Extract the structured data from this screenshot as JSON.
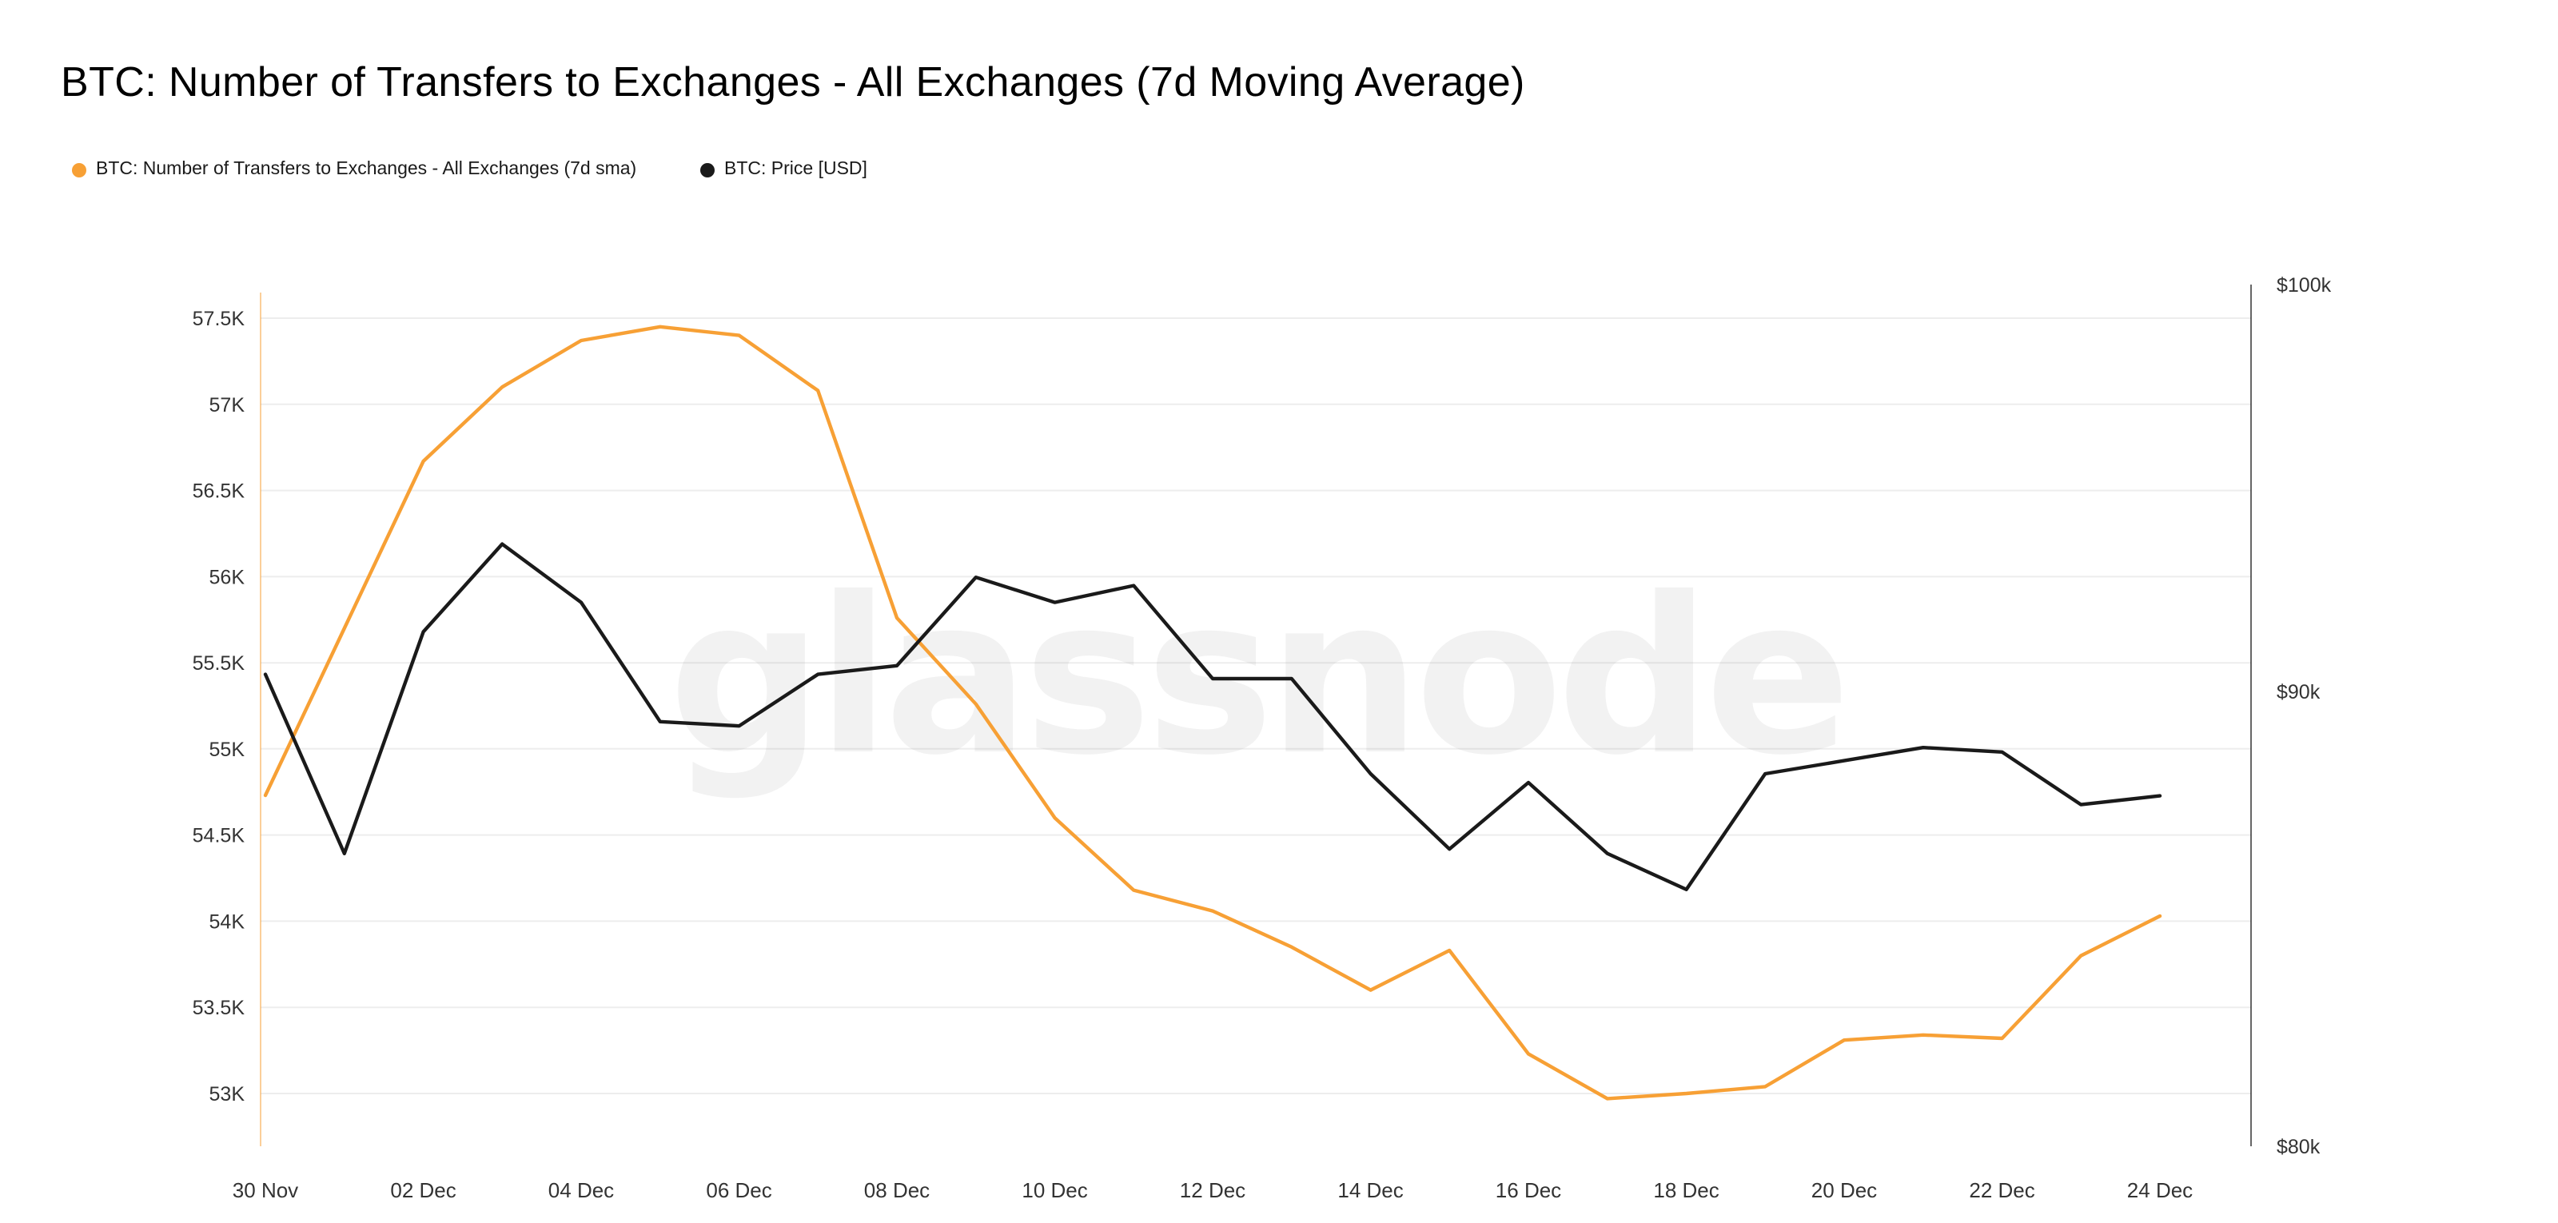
{
  "chart_data": {
    "type": "line",
    "title": "BTC: Number of Transfers to Exchanges - All Exchanges (7d Moving Average)",
    "watermark": "glassnode",
    "legend": [
      {
        "label": "BTC: Number of Transfers to Exchanges - All Exchanges (7d sma)",
        "color": "#f7a035"
      },
      {
        "label": "BTC: Price [USD]",
        "color": "#1a1a1a"
      }
    ],
    "x": [
      "30 Nov",
      "01 Dec",
      "02 Dec",
      "03 Dec",
      "04 Dec",
      "05 Dec",
      "06 Dec",
      "07 Dec",
      "08 Dec",
      "09 Dec",
      "10 Dec",
      "11 Dec",
      "12 Dec",
      "13 Dec",
      "14 Dec",
      "15 Dec",
      "16 Dec",
      "17 Dec",
      "18 Dec",
      "19 Dec",
      "20 Dec",
      "21 Dec",
      "22 Dec",
      "23 Dec",
      "24 Dec"
    ],
    "x_tick_labels": [
      "30 Nov",
      "02 Dec",
      "04 Dec",
      "06 Dec",
      "08 Dec",
      "10 Dec",
      "12 Dec",
      "14 Dec",
      "16 Dec",
      "18 Dec",
      "20 Dec",
      "22 Dec",
      "24 Dec"
    ],
    "series": [
      {
        "name": "transfers-7d-sma",
        "axis": "left",
        "color": "#f7a035",
        "unit": "K transfers",
        "values": [
          54.73,
          55.7,
          56.67,
          57.1,
          57.37,
          57.45,
          57.4,
          57.08,
          55.76,
          55.26,
          54.6,
          54.18,
          54.06,
          53.85,
          53.6,
          53.83,
          53.23,
          52.97,
          53.0,
          53.04,
          53.31,
          53.34,
          53.32,
          53.8,
          54.03
        ]
      },
      {
        "name": "price-usd",
        "axis": "right",
        "color": "#1a1a1a",
        "unit": "$k",
        "values": [
          90.4,
          86.3,
          91.4,
          93.5,
          92.1,
          89.3,
          89.2,
          90.4,
          90.6,
          92.7,
          92.1,
          92.5,
          90.3,
          90.3,
          88.1,
          86.4,
          87.9,
          86.3,
          85.5,
          88.1,
          88.4,
          88.7,
          88.6,
          87.4,
          87.6
        ]
      }
    ],
    "left_axis": {
      "ticks": [
        "57.5K",
        "57K",
        "56.5K",
        "56K",
        "55.5K",
        "55K",
        "54.5K",
        "54K",
        "53.5K",
        "53K"
      ],
      "tick_values": [
        57.5,
        57,
        56.5,
        56,
        55.5,
        55,
        54.5,
        54,
        53.5,
        53
      ],
      "scale": "linear"
    },
    "right_axis": {
      "ticks": [
        "$100k",
        "$90k",
        "$80k"
      ],
      "tick_values": [
        100,
        90,
        80
      ],
      "scale": "log"
    },
    "grid": "horizontal",
    "legend_position": "top-left"
  }
}
